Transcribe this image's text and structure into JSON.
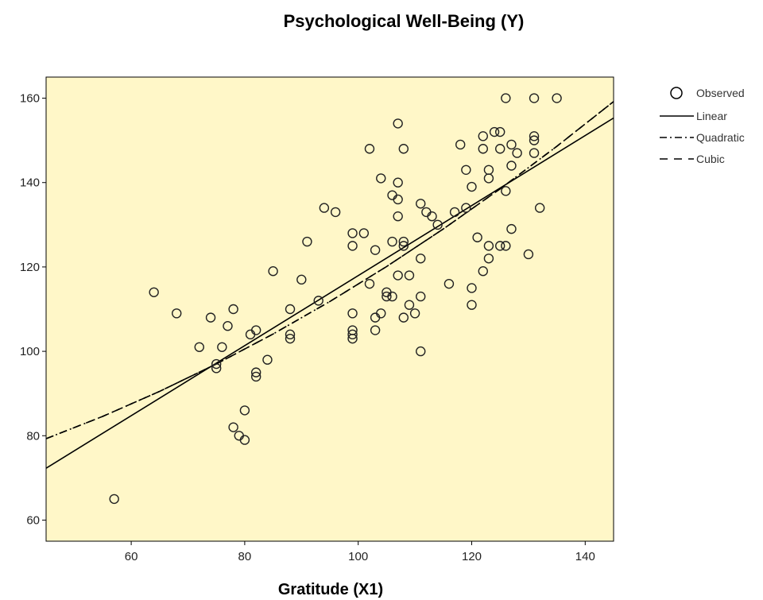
{
  "chart_data": {
    "type": "scatter",
    "title": "Psychological Well-Being (Y)",
    "xlabel": "Gratitude (X1)",
    "ylabel": "",
    "xlim": [
      45,
      145
    ],
    "ylim": [
      55,
      165
    ],
    "xticks": [
      60,
      80,
      100,
      120,
      140
    ],
    "yticks": [
      60,
      80,
      100,
      120,
      140,
      160
    ],
    "grid": false,
    "legend_position": "top-right",
    "series": [
      {
        "name": "Observed",
        "kind": "points",
        "points": [
          [
            57,
            65
          ],
          [
            64,
            114
          ],
          [
            68,
            109
          ],
          [
            72,
            101
          ],
          [
            74,
            108
          ],
          [
            75,
            97
          ],
          [
            75,
            96
          ],
          [
            76,
            101
          ],
          [
            77,
            106
          ],
          [
            78,
            110
          ],
          [
            78,
            82
          ],
          [
            79,
            80
          ],
          [
            80,
            79
          ],
          [
            80,
            86
          ],
          [
            81,
            104
          ],
          [
            82,
            105
          ],
          [
            82,
            95
          ],
          [
            82,
            94
          ],
          [
            84,
            98
          ],
          [
            85,
            119
          ],
          [
            88,
            110
          ],
          [
            88,
            104
          ],
          [
            88,
            103
          ],
          [
            90,
            117
          ],
          [
            91,
            126
          ],
          [
            93,
            112
          ],
          [
            94,
            134
          ],
          [
            96,
            133
          ],
          [
            99,
            128
          ],
          [
            99,
            125
          ],
          [
            99,
            109
          ],
          [
            99,
            105
          ],
          [
            99,
            104
          ],
          [
            99,
            103
          ],
          [
            101,
            128
          ],
          [
            102,
            116
          ],
          [
            102,
            148
          ],
          [
            103,
            124
          ],
          [
            103,
            108
          ],
          [
            103,
            105
          ],
          [
            104,
            109
          ],
          [
            104,
            141
          ],
          [
            105,
            114
          ],
          [
            105,
            113
          ],
          [
            106,
            113
          ],
          [
            106,
            126
          ],
          [
            106,
            137
          ],
          [
            107,
            154
          ],
          [
            107,
            140
          ],
          [
            107,
            136
          ],
          [
            107,
            132
          ],
          [
            107,
            118
          ],
          [
            108,
            148
          ],
          [
            108,
            126
          ],
          [
            108,
            125
          ],
          [
            108,
            108
          ],
          [
            109,
            118
          ],
          [
            109,
            111
          ],
          [
            110,
            109
          ],
          [
            111,
            135
          ],
          [
            111,
            122
          ],
          [
            111,
            113
          ],
          [
            111,
            100
          ],
          [
            112,
            133
          ],
          [
            113,
            132
          ],
          [
            114,
            130
          ],
          [
            116,
            116
          ],
          [
            117,
            133
          ],
          [
            118,
            149
          ],
          [
            119,
            143
          ],
          [
            119,
            134
          ],
          [
            120,
            139
          ],
          [
            120,
            115
          ],
          [
            120,
            111
          ],
          [
            121,
            127
          ],
          [
            122,
            151
          ],
          [
            122,
            148
          ],
          [
            122,
            119
          ],
          [
            123,
            143
          ],
          [
            123,
            141
          ],
          [
            123,
            125
          ],
          [
            123,
            122
          ],
          [
            124,
            152
          ],
          [
            125,
            152
          ],
          [
            125,
            148
          ],
          [
            125,
            125
          ],
          [
            126,
            160
          ],
          [
            126,
            138
          ],
          [
            126,
            125
          ],
          [
            127,
            149
          ],
          [
            127,
            144
          ],
          [
            127,
            129
          ],
          [
            128,
            147
          ],
          [
            130,
            123
          ],
          [
            131,
            160
          ],
          [
            131,
            151
          ],
          [
            131,
            150
          ],
          [
            131,
            147
          ],
          [
            132,
            134
          ],
          [
            135,
            160
          ]
        ]
      },
      {
        "name": "Linear",
        "kind": "line",
        "dash": "solid",
        "x": [
          45,
          145
        ],
        "y": [
          72.3,
          155.3
        ]
      },
      {
        "name": "Quadratic",
        "kind": "line",
        "dash": "dashdot",
        "x": [
          45,
          55,
          65,
          75,
          85,
          95,
          105,
          115,
          125,
          135,
          145
        ],
        "y": [
          79.3,
          84.6,
          90.5,
          97.0,
          104.1,
          111.8,
          120.1,
          129.0,
          138.5,
          148.6,
          159.2
        ]
      },
      {
        "name": "Cubic",
        "kind": "line",
        "dash": "dashed",
        "x": [
          45,
          55,
          65,
          75,
          85,
          95,
          105,
          115,
          125,
          135,
          145
        ],
        "y": [
          79.3,
          84.6,
          90.5,
          97.0,
          104.1,
          111.8,
          120.1,
          129.0,
          138.5,
          148.6,
          159.2
        ]
      }
    ]
  }
}
